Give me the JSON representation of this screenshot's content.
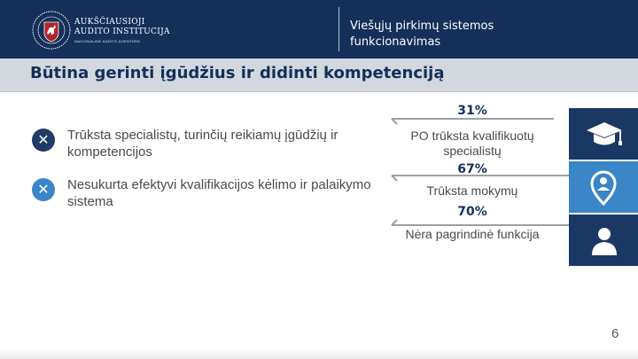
{
  "header": {
    "org_line1": "AUKŠČIAUSIOJI",
    "org_line2": "AUDITO INSTITUCIJA",
    "org_line3": "NACIONALINĖ AUDITO AGENTŪRA",
    "title": "Viešųjų pirkimų sistemos funkcionavimas",
    "bg_color": "#14305a"
  },
  "slide": {
    "title": "Būtina gerinti įgūdžius ir didinti kompetenciją",
    "page_number": "6"
  },
  "bullets": [
    {
      "icon": "x-icon",
      "color": "#1f3c66",
      "text": "Trūksta specialistų, turinčių reikiamų įgūdžių ir kompetencijos"
    },
    {
      "icon": "x-icon",
      "color": "#3a86c6",
      "text": "Nesukurta efektyvi kvalifikacijos kėlimo ir palaikymo sistema"
    }
  ],
  "stats": [
    {
      "value": "31%",
      "label": "PO trūksta kvalifikuotų specialistų",
      "icon": "graduation-cap-icon",
      "box_color": "#1a3864"
    },
    {
      "value": "67%",
      "label": "Trūksta mokymų",
      "icon": "person-location-pin-icon",
      "box_color": "#3a86c6"
    },
    {
      "value": "70%",
      "label": "Nėra pagrindinė funkcija",
      "icon": "person-icon",
      "box_color": "#1a3864"
    }
  ]
}
